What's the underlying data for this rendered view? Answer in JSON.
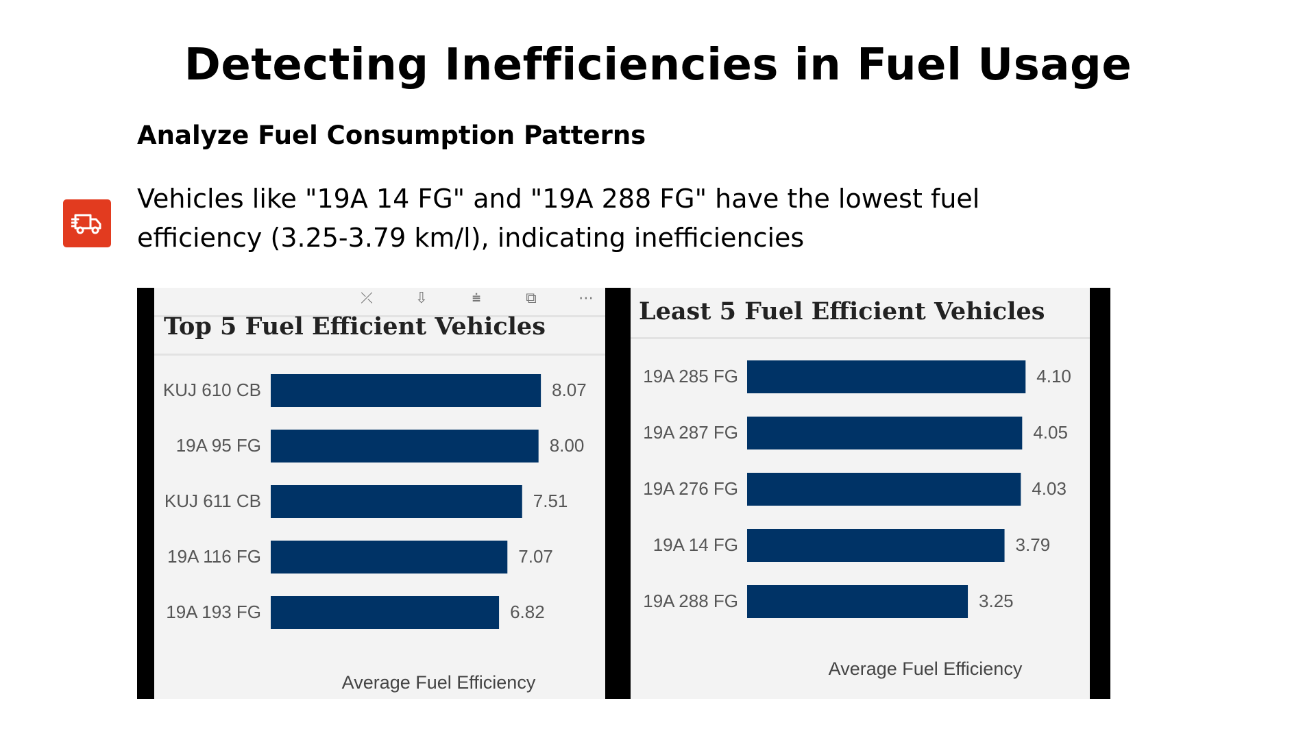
{
  "slide": {
    "title": "Detecting Inefficiencies in Fuel Usage",
    "section_heading": "Analyze Fuel Consumption Patterns",
    "body_text": "Vehicles like \"19A 14 FG\" and \"19A 288 FG\" have the lowest fuel efficiency (3.25-3.79 km/l), indicating inefficiencies",
    "icon": "truck-icon",
    "accent_color": "#e23b1f"
  },
  "chart_data": [
    {
      "type": "bar",
      "orientation": "horizontal",
      "title": "Top 5 Fuel Efficient Vehicles",
      "xlabel": "Average Fuel Efficiency",
      "categories": [
        "KUJ 610 CB",
        "19A 95 FG",
        "KUJ 611 CB",
        "19A 116 FG",
        "19A 193 FG"
      ],
      "values": [
        8.07,
        8.0,
        7.51,
        7.07,
        6.82
      ],
      "value_labels": [
        "8.07",
        "8.00",
        "7.51",
        "7.07",
        "6.82"
      ],
      "xlim": [
        0,
        8.6
      ],
      "bar_color": "#003366",
      "grid": false
    },
    {
      "type": "bar",
      "orientation": "horizontal",
      "title": "Least 5 Fuel Efficient Vehicles",
      "xlabel": "Average Fuel Efficiency",
      "categories": [
        "19A 285 FG",
        "19A 287 FG",
        "19A 276 FG",
        "19A 14 FG",
        "19A 288 FG"
      ],
      "values": [
        4.1,
        4.05,
        4.03,
        3.79,
        3.25
      ],
      "value_labels": [
        "4.10",
        "4.05",
        "4.03",
        "3.79",
        "3.25"
      ],
      "xlim": [
        0,
        4.4
      ],
      "bar_color": "#003366",
      "grid": false
    }
  ]
}
